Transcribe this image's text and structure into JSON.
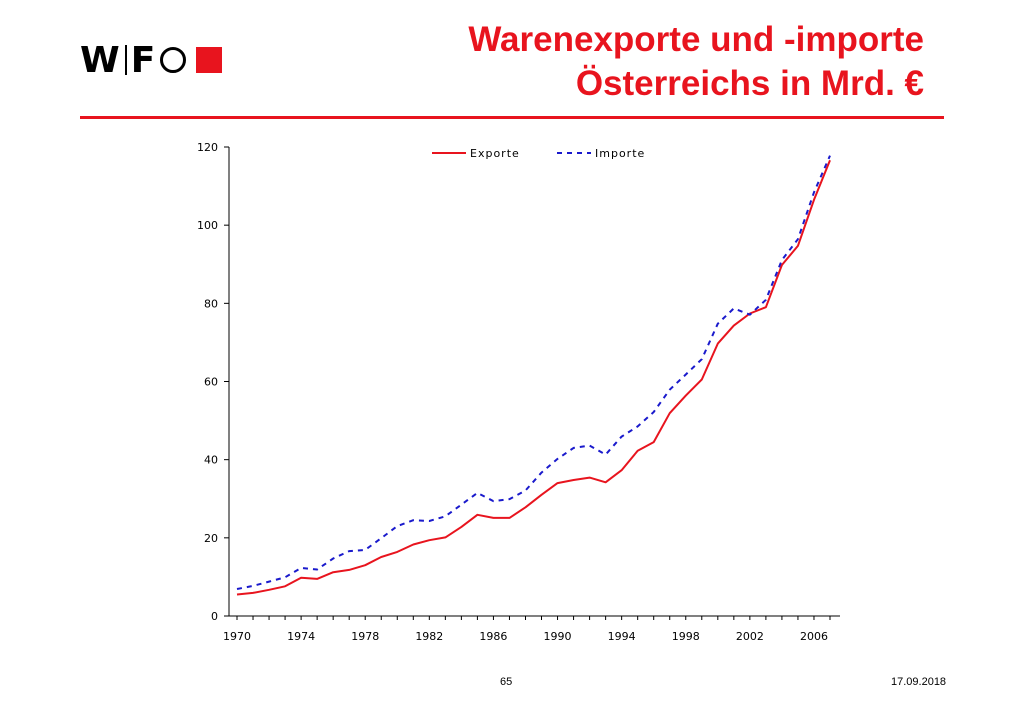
{
  "header": {
    "logo_text": "WIFO",
    "title_line1": "Warenexporte und -importe",
    "title_line2": "Österreichs in Mrd. €"
  },
  "footer": {
    "page_number": "65",
    "date": "17.09.2018"
  },
  "colors": {
    "accent": "#e8141e",
    "exporte": "#e8141e",
    "importe": "#1a1acc"
  },
  "chart_data": {
    "type": "line",
    "title": "Warenexporte und -importe Österreichs in Mrd. €",
    "xlabel": "",
    "ylabel": "",
    "xlim": [
      1970,
      2007
    ],
    "ylim": [
      0,
      120
    ],
    "yticks": [
      0,
      20,
      40,
      60,
      80,
      100,
      120
    ],
    "xticks": [
      1970,
      1974,
      1978,
      1982,
      1986,
      1990,
      1994,
      1998,
      2002,
      2006
    ],
    "grid": false,
    "legend_position": "top",
    "x": [
      1970,
      1971,
      1972,
      1973,
      1974,
      1975,
      1976,
      1977,
      1978,
      1979,
      1980,
      1981,
      1982,
      1983,
      1984,
      1985,
      1986,
      1987,
      1988,
      1989,
      1990,
      1991,
      1992,
      1993,
      1994,
      1995,
      1996,
      1997,
      1998,
      1999,
      2000,
      2001,
      2002,
      2003,
      2004,
      2005,
      2006,
      2007
    ],
    "series": [
      {
        "name": "Exporte",
        "style": "solid",
        "values": [
          5.5,
          5.9,
          6.7,
          7.6,
          9.8,
          9.5,
          11.2,
          11.8,
          13.0,
          15.1,
          16.4,
          18.3,
          19.4,
          20.1,
          22.8,
          25.9,
          25.1,
          25.1,
          27.8,
          31.0,
          34.0,
          34.8,
          35.4,
          34.2,
          37.3,
          42.3,
          44.5,
          51.9,
          56.4,
          60.5,
          69.7,
          74.3,
          77.4,
          79.0,
          89.8,
          94.7,
          106.5,
          116.6
        ]
      },
      {
        "name": "Importe",
        "style": "dashed",
        "values": [
          6.9,
          7.7,
          8.8,
          9.9,
          12.3,
          11.9,
          14.7,
          16.6,
          16.9,
          19.9,
          23.0,
          24.5,
          24.3,
          25.5,
          28.5,
          31.5,
          29.4,
          29.9,
          32.1,
          36.7,
          40.2,
          43.0,
          43.6,
          41.3,
          45.9,
          48.5,
          52.2,
          57.9,
          61.8,
          65.7,
          74.8,
          78.7,
          77.1,
          80.9,
          91.1,
          96.4,
          108.4,
          117.8
        ]
      }
    ]
  }
}
